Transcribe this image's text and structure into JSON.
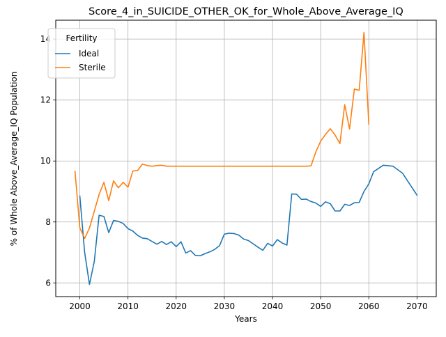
{
  "chart_data": {
    "type": "line",
    "title": "Score_4_in_SUICIDE_OTHER_OK_for_Whole_Above_Average_IQ",
    "xlabel": "Years",
    "ylabel": "% of Whole Above_Average_IQ Population",
    "xlim": [
      1995,
      2074
    ],
    "ylim": [
      5.55,
      14.62
    ],
    "xticks": [
      2000,
      2010,
      2020,
      2030,
      2040,
      2050,
      2060,
      2070
    ],
    "yticks": [
      6,
      8,
      10,
      12,
      14
    ],
    "grid": true,
    "legend": {
      "title": "Fertility",
      "placement": "upper-left"
    },
    "series": [
      {
        "name": "Ideal",
        "color": "#1f77b4",
        "x": [
          2000,
          2001,
          2002,
          2003,
          2004,
          2005,
          2006,
          2007,
          2008,
          2009,
          2010,
          2011,
          2012,
          2013,
          2014,
          2015,
          2016,
          2017,
          2018,
          2019,
          2020,
          2021,
          2022,
          2023,
          2024,
          2025,
          2026,
          2027,
          2028,
          2029,
          2030,
          2031,
          2032,
          2033,
          2034,
          2035,
          2036,
          2037,
          2038,
          2039,
          2040,
          2041,
          2042,
          2043,
          2044,
          2045,
          2046,
          2047,
          2048,
          2049,
          2050,
          2051,
          2052,
          2053,
          2054,
          2055,
          2056,
          2057,
          2058,
          2059,
          2060,
          2061,
          2063,
          2065,
          2067,
          2070
        ],
        "y": [
          8.85,
          7.0,
          5.95,
          6.7,
          8.22,
          8.18,
          7.65,
          8.05,
          8.02,
          7.95,
          7.78,
          7.7,
          7.56,
          7.47,
          7.45,
          7.36,
          7.27,
          7.36,
          7.26,
          7.35,
          7.19,
          7.35,
          6.98,
          7.06,
          6.9,
          6.89,
          6.96,
          7.02,
          7.1,
          7.22,
          7.6,
          7.63,
          7.62,
          7.57,
          7.44,
          7.39,
          7.28,
          7.17,
          7.07,
          7.3,
          7.21,
          7.42,
          7.31,
          7.24,
          8.92,
          8.91,
          8.74,
          8.75,
          8.67,
          8.62,
          8.51,
          8.66,
          8.6,
          8.36,
          8.36,
          8.58,
          8.54,
          8.63,
          8.64,
          9.0,
          9.25,
          9.65,
          9.86,
          9.83,
          9.6,
          8.88
        ]
      },
      {
        "name": "Sterile",
        "color": "#ff7f0e",
        "x": [
          1999,
          2000,
          2001,
          2002,
          2003,
          2004,
          2005,
          2006,
          2007,
          2008,
          2009,
          2010,
          2011,
          2012,
          2013,
          2014,
          2015,
          2016,
          2017,
          2018,
          2019,
          2020,
          2030,
          2040,
          2045,
          2047,
          2048,
          2049,
          2050,
          2051,
          2052,
          2053,
          2054,
          2055,
          2056,
          2057,
          2058,
          2059,
          2060
        ],
        "y": [
          9.66,
          7.8,
          7.46,
          7.8,
          8.35,
          8.9,
          9.3,
          8.7,
          9.35,
          9.12,
          9.3,
          9.14,
          9.67,
          9.69,
          9.9,
          9.85,
          9.83,
          9.85,
          9.86,
          9.83,
          9.83,
          9.83,
          9.83,
          9.83,
          9.83,
          9.83,
          9.84,
          10.3,
          10.65,
          10.87,
          11.06,
          10.85,
          10.57,
          11.85,
          11.05,
          12.36,
          12.32,
          14.22,
          11.21
        ]
      }
    ]
  }
}
